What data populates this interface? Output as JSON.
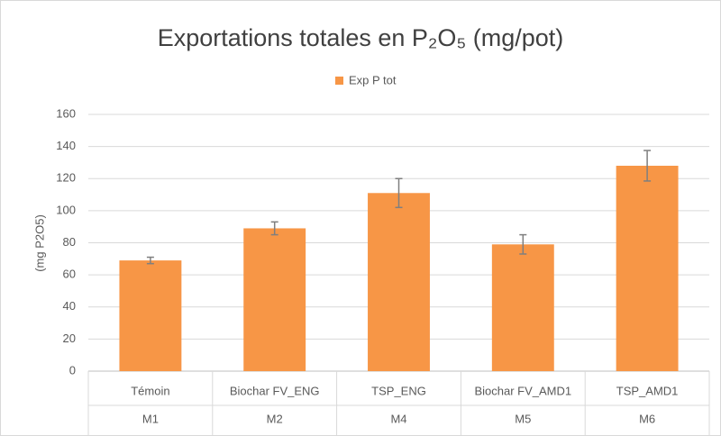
{
  "chart_data": {
    "type": "bar",
    "title": "Exportations totales en P₂O₅ (mg/pot)",
    "y_label": "(mg P2O5)",
    "categories": [
      "Témoin",
      "Biochar FV_ENG",
      "TSP_ENG",
      "Biochar FV_AMD1",
      "TSP_AMD1"
    ],
    "category_groups": [
      "M1",
      "M2",
      "M4",
      "M5",
      "M6"
    ],
    "series": [
      {
        "name": "Exp P tot",
        "color": "#f79646",
        "values": [
          69,
          89,
          111,
          79,
          128
        ],
        "errors": [
          2,
          4,
          9,
          6,
          9.5
        ]
      }
    ],
    "ylim": [
      0,
      160
    ],
    "yticks": [
      0,
      20,
      40,
      60,
      80,
      100,
      120,
      140,
      160
    ],
    "grid": true,
    "legend": "top"
  }
}
